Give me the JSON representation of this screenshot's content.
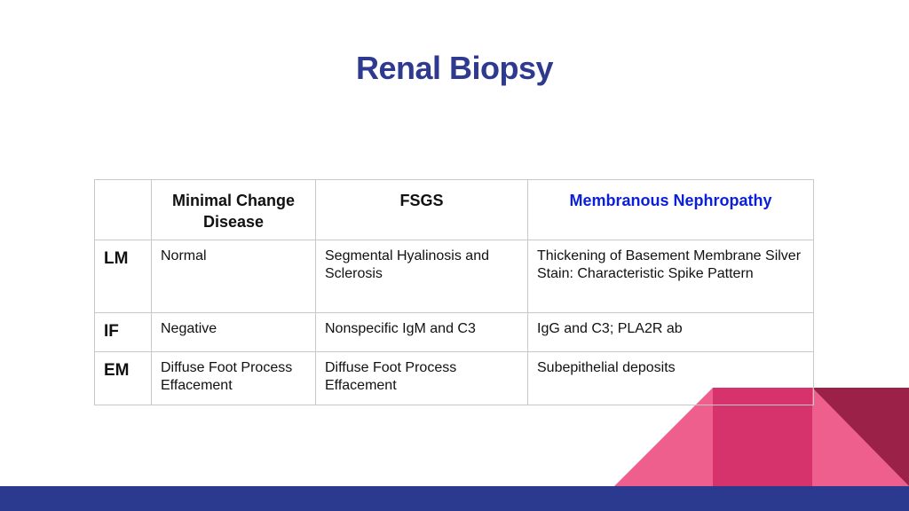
{
  "title": "Renal Biopsy",
  "colors": {
    "title": "#2e3a8f",
    "highlight_header": "#0a1fd8",
    "footer_bar": "#2b3a8f",
    "pink_light": "#ef5f8e",
    "pink_mid": "#d6336c",
    "maroon": "#9b2148"
  },
  "table": {
    "corner": "",
    "columns": [
      "Minimal Change Disease",
      "FSGS",
      "Membranous Nephropathy"
    ],
    "rows": [
      {
        "label": "LM",
        "cells": [
          "Normal",
          "Segmental Hyalinosis and Sclerosis",
          "Thickening of Basement Membrane Silver Stain: Characteristic Spike Pattern"
        ]
      },
      {
        "label": "IF",
        "cells": [
          "Negative",
          "Nonspecific IgM and C3",
          "IgG and C3; PLA2R ab"
        ]
      },
      {
        "label": "EM",
        "cells": [
          "Diffuse Foot Process Effacement",
          "Diffuse Foot Process Effacement",
          "Subepithelial deposits"
        ]
      }
    ]
  }
}
